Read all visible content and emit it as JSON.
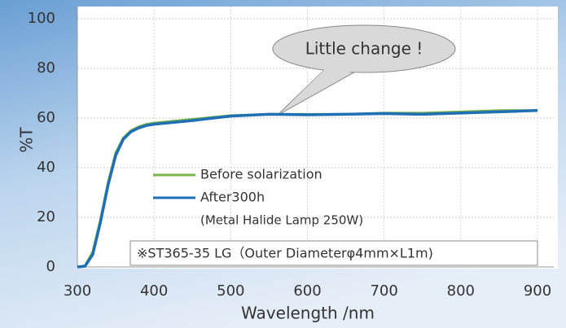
{
  "chart_data": {
    "type": "line",
    "x": [
      300,
      310,
      320,
      330,
      340,
      350,
      360,
      370,
      380,
      390,
      400,
      450,
      500,
      550,
      600,
      650,
      700,
      750,
      800,
      850,
      900
    ],
    "series": [
      {
        "name": "Before solarization",
        "color": "#7ab648",
        "values": [
          0,
          0.5,
          6,
          19,
          34,
          46,
          52,
          55,
          56.5,
          57.5,
          58,
          59.5,
          61,
          61.5,
          61.5,
          61.5,
          62,
          62,
          62.5,
          63,
          63
        ]
      },
      {
        "name": "After300h",
        "color": "#1f6fb5",
        "values": [
          0,
          0.3,
          5,
          18,
          33,
          45,
          51.5,
          54.5,
          56,
          57,
          57.5,
          59,
          60.8,
          61.5,
          61.3,
          61.5,
          61.8,
          61.5,
          62,
          62.5,
          63
        ]
      }
    ],
    "legend_note": "(Metal Halide Lamp 250W)",
    "annotation": "Little change !",
    "footnote": "※ST365-35 LG（Outer Diameterφ4mm×L1m)",
    "xlabel": "Wavelength /nm",
    "ylabel": "%T",
    "xlim": [
      300,
      900
    ],
    "ylim": [
      0,
      100
    ],
    "xticks": [
      300,
      400,
      500,
      600,
      700,
      800,
      900
    ],
    "yticks": [
      0,
      20,
      40,
      60,
      80,
      100
    ],
    "grid": true
  }
}
